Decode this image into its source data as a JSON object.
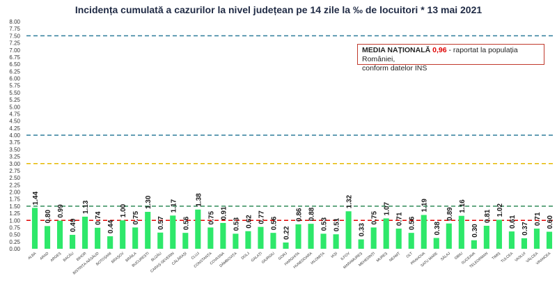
{
  "chart_data": {
    "type": "bar",
    "title": "Incidența cumulată a cazurilor la nivel județean pe 14 zile la ‰ de locuitori *  13 mai 2021",
    "xlabel": "",
    "ylabel": "",
    "ylim": [
      0,
      8
    ],
    "yticks": [
      "0.00",
      "0.25",
      "0.50",
      "0.75",
      "1.00",
      "1.25",
      "1.50",
      "1.75",
      "2.00",
      "2.25",
      "2.50",
      "2.75",
      "3.00",
      "3.25",
      "3.50",
      "3.75",
      "4.00",
      "4.25",
      "4.50",
      "4.75",
      "5.00",
      "5.25",
      "5.50",
      "5.75",
      "6.00",
      "6.25",
      "6.50",
      "6.75",
      "7.00",
      "7.25",
      "7.50",
      "7.75",
      "8.00"
    ],
    "categories": [
      "ALBA",
      "ARAD",
      "ARGEȘ",
      "BACĂU",
      "BIHOR",
      "BISTRIȚA-NĂSĂUD",
      "BOTOȘANI",
      "BRAȘOV",
      "BRĂILA",
      "BUCUREȘTI",
      "BUZĂU",
      "CARAȘ-SEVERIN",
      "CĂLĂRAȘI",
      "CLUJ",
      "CONSTANȚA",
      "COVASNA",
      "DÂMBOVIȚA",
      "DOLJ",
      "GALAȚI",
      "GIURGIU",
      "GORJ",
      "HARGHITA",
      "HUNEDOARA",
      "IALOMIȚA",
      "IAȘI",
      "ILFOV",
      "MARAMUREȘ",
      "MEHEDINȚI",
      "MUREȘ",
      "NEAMȚ",
      "OLT",
      "PRAHOVA",
      "SATU MARE",
      "SĂLAJ",
      "SIBIU",
      "SUCEAVA",
      "TELEORMAN",
      "TIMIȘ",
      "TULCEA",
      "VASLUI",
      "VÂLCEA",
      "VRANCEA"
    ],
    "values": [
      1.44,
      0.8,
      0.99,
      0.49,
      1.13,
      0.74,
      0.44,
      1.0,
      0.75,
      1.3,
      0.57,
      1.17,
      0.56,
      1.38,
      0.75,
      0.91,
      0.53,
      0.62,
      0.77,
      0.56,
      0.22,
      0.86,
      0.88,
      0.53,
      0.51,
      1.32,
      0.33,
      0.75,
      1.07,
      0.71,
      0.56,
      1.19,
      0.38,
      0.89,
      1.16,
      0.3,
      0.81,
      1.02,
      0.61,
      0.37,
      0.71,
      0.6
    ],
    "value_labels": [
      "1.44",
      "0.80",
      "0.99",
      "0.49",
      "1.13",
      "0.74",
      "0.44",
      "1.00",
      "0.75",
      "1.30",
      "0.57",
      "1.17",
      "0.56",
      "1.38",
      "0.75",
      "0.91",
      "0.53",
      "0.62",
      "0.77",
      "0.56",
      "0.22",
      "0.86",
      "0.88",
      "0.53",
      "0.51",
      "1.32",
      "0.33",
      "0.75",
      "1.07",
      "0.71",
      "0.56",
      "1.19",
      "0.38",
      "0.89",
      "1.16",
      "0.30",
      "0.81",
      "1.02",
      "0.61",
      "0.37",
      "0.71",
      "0.60"
    ],
    "threshold_lines": [
      {
        "value": 7.5,
        "color": "#2e7d9a"
      },
      {
        "value": 4.0,
        "color": "#2e7d9a"
      },
      {
        "value": 3.0,
        "color": "#e6b800"
      },
      {
        "value": 1.5,
        "color": "#2e8b57"
      },
      {
        "value": 1.0,
        "color": "#e00000"
      }
    ],
    "bar_color": "#2ee86a",
    "grid": false,
    "annotation": {
      "label": "MEDIA NAȚIONALĂ",
      "value": "0,96",
      "text1": " - raportat la populația României,",
      "text2": "conform datelor INS"
    }
  }
}
